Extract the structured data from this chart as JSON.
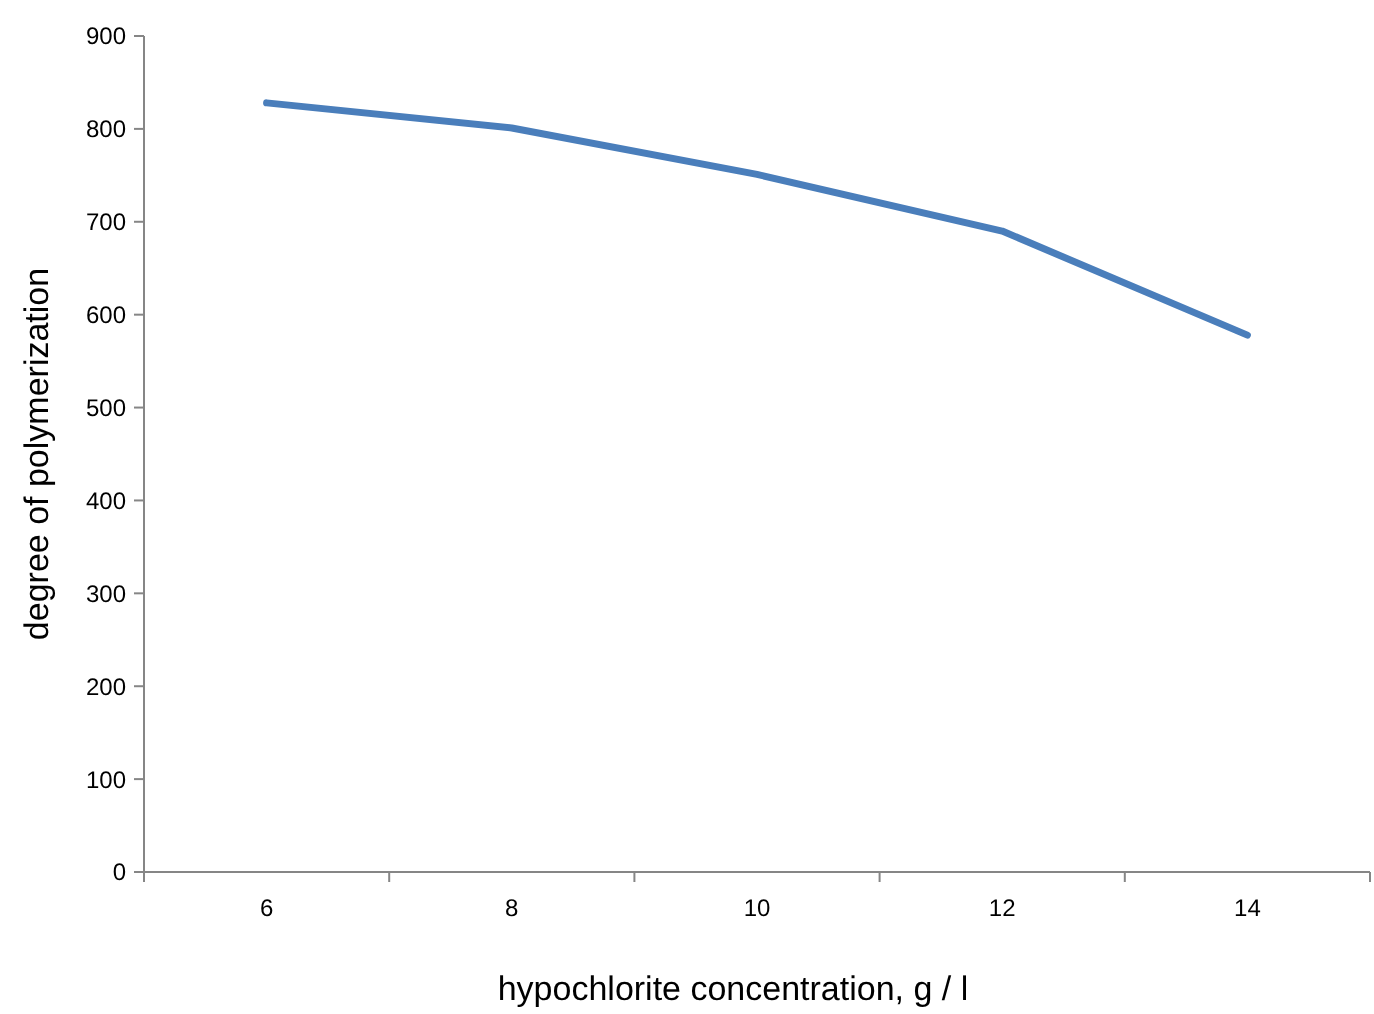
{
  "chart_data": {
    "type": "line",
    "xlabel": "hypochlorite concentration, g / l",
    "ylabel": "degree of polymerization",
    "categories": [
      "6",
      "8",
      "10",
      "12",
      "14"
    ],
    "series": [
      {
        "color": "#4a7ebb",
        "values": [
          828,
          801,
          751,
          690,
          578
        ]
      }
    ],
    "ylim": [
      0,
      900
    ],
    "yticks": [
      0,
      100,
      200,
      300,
      400,
      500,
      600,
      700,
      800,
      900
    ],
    "grid": false,
    "marker": "none",
    "line_style": "solid"
  }
}
